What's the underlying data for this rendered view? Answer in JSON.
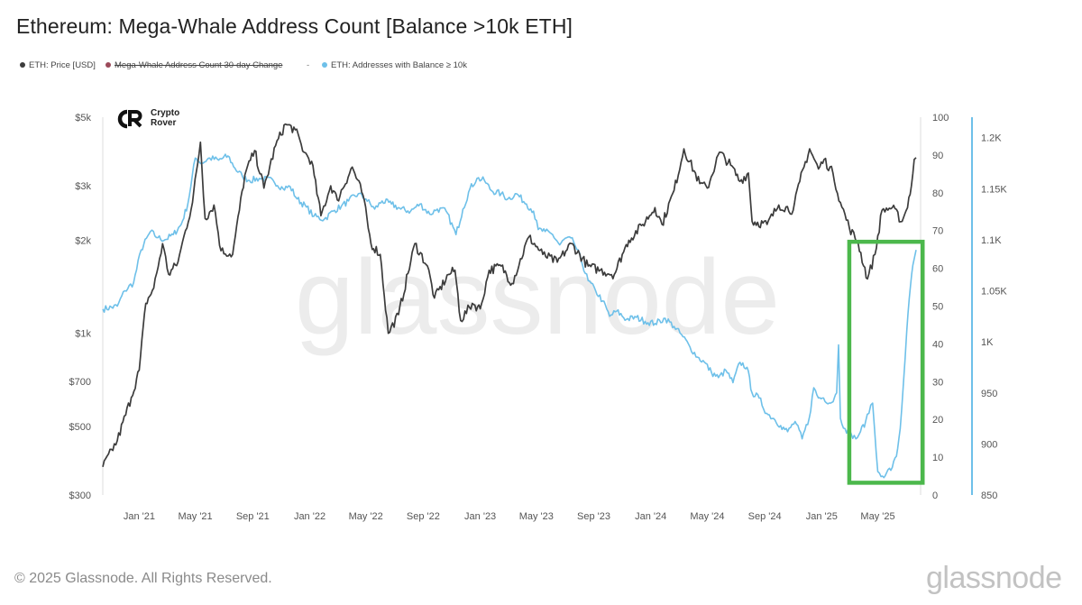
{
  "header": {
    "title": "Ethereum: Mega-Whale Address Count [Balance >10k ETH]"
  },
  "legend": {
    "items": [
      {
        "label": "ETH: Price [USD]",
        "color": "#3c3c3c",
        "struck": false
      },
      {
        "label": "Mega-Whale Address Count 30-day Change",
        "color": "#9b4a5a",
        "struck": true
      },
      {
        "label": "ETH: Addresses with Balance ≥ 10k",
        "color": "#6ec0e9",
        "struck": false
      }
    ],
    "separator": "-"
  },
  "logo": {
    "line1": "Crypto",
    "line2": "Rover"
  },
  "watermark": {
    "text": "glassnode"
  },
  "footer": {
    "copyright": "© 2025 Glassnode. All Rights Reserved.",
    "brand": "glassnode"
  },
  "colors": {
    "price": "#3c3c3c",
    "addresses": "#6ec0e9",
    "highlight": "#4cb84c",
    "grid": "#ebebeb"
  },
  "chart_data": {
    "type": "line",
    "title": "Ethereum: Mega-Whale Address Count [Balance >10k ETH]",
    "x_ticks": [
      "Jan '21",
      "May '21",
      "Sep '21",
      "Jan '22",
      "May '22",
      "Sep '22",
      "Jan '23",
      "May '23",
      "Sep '23",
      "Jan '24",
      "May '24",
      "Sep '24",
      "Jan '25",
      "May '25"
    ],
    "x_range": [
      "2020-10-15",
      "2025-07-22"
    ],
    "left_axis": {
      "scale": "log",
      "ticks": [
        "$300",
        "$500",
        "$700",
        "$1k",
        "$2k",
        "$3k",
        "$5k"
      ],
      "range": [
        300,
        5000
      ]
    },
    "mid_axis": {
      "ticks": [
        "0",
        "10",
        "20",
        "30",
        "40",
        "50",
        "60",
        "70",
        "80",
        "90",
        "100"
      ],
      "range": [
        0,
        100
      ]
    },
    "right_axis": {
      "ticks": [
        "850",
        "900",
        "950",
        "1K",
        "1.05K",
        "1.1K",
        "1.15K",
        "1.2K"
      ],
      "range": [
        850,
        1220
      ]
    },
    "grid": false,
    "highlight_box": {
      "x_range": [
        "2025-03-01",
        "2025-08-05"
      ],
      "addresses_range": [
        862,
        1098
      ],
      "color": "#4cb84c"
    },
    "series": [
      {
        "name": "ETH: Price [USD]",
        "axis": "left",
        "points": [
          [
            "2020-10-15",
            370
          ],
          [
            "2020-11-15",
            450
          ],
          [
            "2020-12-15",
            620
          ],
          [
            "2021-01-01",
            760
          ],
          [
            "2021-01-15",
            1250
          ],
          [
            "2021-02-01",
            1400
          ],
          [
            "2021-02-20",
            1950
          ],
          [
            "2021-03-05",
            1550
          ],
          [
            "2021-03-25",
            1700
          ],
          [
            "2021-04-10",
            2150
          ],
          [
            "2021-04-25",
            2650
          ],
          [
            "2021-05-12",
            4150
          ],
          [
            "2021-05-22",
            2350
          ],
          [
            "2021-06-10",
            2600
          ],
          [
            "2021-06-25",
            1850
          ],
          [
            "2021-07-20",
            1800
          ],
          [
            "2021-08-15",
            3250
          ],
          [
            "2021-09-05",
            3900
          ],
          [
            "2021-09-25",
            2950
          ],
          [
            "2021-10-20",
            4050
          ],
          [
            "2021-11-10",
            4750
          ],
          [
            "2021-12-01",
            4550
          ],
          [
            "2021-12-20",
            3850
          ],
          [
            "2022-01-05",
            3600
          ],
          [
            "2022-01-25",
            2400
          ],
          [
            "2022-02-15",
            3000
          ],
          [
            "2022-03-01",
            2700
          ],
          [
            "2022-04-02",
            3450
          ],
          [
            "2022-04-25",
            2800
          ],
          [
            "2022-05-12",
            1950
          ],
          [
            "2022-06-01",
            1800
          ],
          [
            "2022-06-18",
            1000
          ],
          [
            "2022-07-10",
            1150
          ],
          [
            "2022-08-14",
            1950
          ],
          [
            "2022-09-10",
            1650
          ],
          [
            "2022-09-25",
            1300
          ],
          [
            "2022-10-25",
            1550
          ],
          [
            "2022-11-08",
            1600
          ],
          [
            "2022-11-20",
            1100
          ],
          [
            "2022-12-15",
            1250
          ],
          [
            "2023-01-01",
            1200
          ],
          [
            "2023-01-20",
            1600
          ],
          [
            "2023-02-15",
            1650
          ],
          [
            "2023-03-10",
            1450
          ],
          [
            "2023-04-15",
            2050
          ],
          [
            "2023-05-15",
            1800
          ],
          [
            "2023-06-15",
            1700
          ],
          [
            "2023-07-15",
            1950
          ],
          [
            "2023-08-20",
            1650
          ],
          [
            "2023-09-15",
            1600
          ],
          [
            "2023-10-15",
            1550
          ],
          [
            "2023-11-01",
            1800
          ],
          [
            "2023-11-15",
            2000
          ],
          [
            "2023-12-15",
            2250
          ],
          [
            "2024-01-10",
            2550
          ],
          [
            "2024-01-25",
            2250
          ],
          [
            "2024-02-20",
            2900
          ],
          [
            "2024-03-12",
            3950
          ],
          [
            "2024-04-15",
            3050
          ],
          [
            "2024-05-01",
            2950
          ],
          [
            "2024-05-27",
            3850
          ],
          [
            "2024-06-20",
            3500
          ],
          [
            "2024-07-10",
            3100
          ],
          [
            "2024-07-28",
            3300
          ],
          [
            "2024-08-05",
            2300
          ],
          [
            "2024-09-06",
            2250
          ],
          [
            "2024-10-01",
            2600
          ],
          [
            "2024-11-01",
            2500
          ],
          [
            "2024-11-15",
            3100
          ],
          [
            "2024-12-06",
            3950
          ],
          [
            "2024-12-25",
            3400
          ],
          [
            "2025-01-06",
            3650
          ],
          [
            "2025-01-25",
            3300
          ],
          [
            "2025-02-10",
            2650
          ],
          [
            "2025-03-01",
            2200
          ],
          [
            "2025-03-20",
            1950
          ],
          [
            "2025-04-09",
            1500
          ],
          [
            "2025-04-25",
            1800
          ],
          [
            "2025-05-10",
            2500
          ],
          [
            "2025-06-01",
            2550
          ],
          [
            "2025-06-22",
            2300
          ],
          [
            "2025-07-01",
            2500
          ],
          [
            "2025-07-12",
            3000
          ],
          [
            "2025-07-18",
            3650
          ],
          [
            "2025-07-22",
            3700
          ]
        ]
      },
      {
        "name": "ETH: Addresses with Balance ≥ 10k",
        "axis": "right",
        "points": [
          [
            "2020-10-15",
            1032
          ],
          [
            "2020-11-15",
            1035
          ],
          [
            "2020-12-01",
            1050
          ],
          [
            "2020-12-20",
            1058
          ],
          [
            "2021-01-05",
            1090
          ],
          [
            "2021-01-25",
            1108
          ],
          [
            "2021-02-10",
            1102
          ],
          [
            "2021-02-25",
            1100
          ],
          [
            "2021-03-15",
            1105
          ],
          [
            "2021-04-01",
            1115
          ],
          [
            "2021-04-15",
            1135
          ],
          [
            "2021-05-01",
            1180
          ],
          [
            "2021-05-15",
            1175
          ],
          [
            "2021-06-01",
            1180
          ],
          [
            "2021-06-20",
            1178
          ],
          [
            "2021-07-10",
            1182
          ],
          [
            "2021-07-25",
            1170
          ],
          [
            "2021-08-10",
            1162
          ],
          [
            "2021-08-25",
            1158
          ],
          [
            "2021-09-15",
            1160
          ],
          [
            "2021-10-15",
            1158
          ],
          [
            "2021-11-05",
            1150
          ],
          [
            "2021-11-20",
            1152
          ],
          [
            "2021-12-05",
            1140
          ],
          [
            "2021-12-25",
            1132
          ],
          [
            "2022-01-10",
            1123
          ],
          [
            "2022-02-01",
            1120
          ],
          [
            "2022-02-20",
            1128
          ],
          [
            "2022-03-10",
            1133
          ],
          [
            "2022-03-25",
            1138
          ],
          [
            "2022-04-15",
            1145
          ],
          [
            "2022-05-01",
            1140
          ],
          [
            "2022-05-20",
            1130
          ],
          [
            "2022-06-05",
            1138
          ],
          [
            "2022-06-25",
            1135
          ],
          [
            "2022-07-15",
            1130
          ],
          [
            "2022-08-05",
            1128
          ],
          [
            "2022-08-25",
            1135
          ],
          [
            "2022-09-15",
            1125
          ],
          [
            "2022-10-01",
            1130
          ],
          [
            "2022-10-20",
            1128
          ],
          [
            "2022-11-10",
            1105
          ],
          [
            "2022-11-25",
            1130
          ],
          [
            "2022-12-10",
            1150
          ],
          [
            "2022-12-25",
            1160
          ],
          [
            "2023-01-10",
            1158
          ],
          [
            "2023-01-25",
            1148
          ],
          [
            "2023-02-15",
            1145
          ],
          [
            "2023-03-01",
            1140
          ],
          [
            "2023-03-20",
            1145
          ],
          [
            "2023-04-10",
            1135
          ],
          [
            "2023-04-25",
            1128
          ],
          [
            "2023-05-05",
            1110
          ],
          [
            "2023-05-20",
            1108
          ],
          [
            "2023-06-05",
            1105
          ],
          [
            "2023-06-20",
            1095
          ],
          [
            "2023-07-05",
            1102
          ],
          [
            "2023-07-20",
            1098
          ],
          [
            "2023-08-05",
            1080
          ],
          [
            "2023-08-20",
            1060
          ],
          [
            "2023-09-05",
            1050
          ],
          [
            "2023-09-20",
            1040
          ],
          [
            "2023-10-05",
            1025
          ],
          [
            "2023-10-20",
            1030
          ],
          [
            "2023-11-10",
            1022
          ],
          [
            "2023-12-01",
            1024
          ],
          [
            "2023-12-20",
            1020
          ],
          [
            "2024-01-10",
            1018
          ],
          [
            "2024-02-01",
            1023
          ],
          [
            "2024-02-20",
            1015
          ],
          [
            "2024-03-10",
            1005
          ],
          [
            "2024-03-25",
            995
          ],
          [
            "2024-04-10",
            985
          ],
          [
            "2024-04-25",
            980
          ],
          [
            "2024-05-10",
            970
          ],
          [
            "2024-05-25",
            965
          ],
          [
            "2024-06-10",
            972
          ],
          [
            "2024-06-25",
            960
          ],
          [
            "2024-07-10",
            980
          ],
          [
            "2024-07-25",
            975
          ],
          [
            "2024-08-05",
            950
          ],
          [
            "2024-08-20",
            945
          ],
          [
            "2024-09-05",
            930
          ],
          [
            "2024-09-20",
            925
          ],
          [
            "2024-10-05",
            918
          ],
          [
            "2024-10-20",
            912
          ],
          [
            "2024-11-05",
            922
          ],
          [
            "2024-11-20",
            905
          ],
          [
            "2024-12-05",
            925
          ],
          [
            "2024-12-15",
            955
          ],
          [
            "2024-12-25",
            945
          ],
          [
            "2025-01-05",
            945
          ],
          [
            "2025-01-20",
            940
          ],
          [
            "2025-01-28",
            945
          ],
          [
            "2025-02-02",
            950
          ],
          [
            "2025-02-06",
            997
          ],
          [
            "2025-02-10",
            925
          ],
          [
            "2025-02-20",
            915
          ],
          [
            "2025-03-05",
            910
          ],
          [
            "2025-03-15",
            905
          ],
          [
            "2025-03-25",
            912
          ],
          [
            "2025-04-05",
            922
          ],
          [
            "2025-04-12",
            930
          ],
          [
            "2025-04-16",
            938
          ],
          [
            "2025-04-20",
            940
          ],
          [
            "2025-04-24",
            915
          ],
          [
            "2025-05-01",
            873
          ],
          [
            "2025-05-08",
            868
          ],
          [
            "2025-05-20",
            872
          ],
          [
            "2025-06-01",
            877
          ],
          [
            "2025-06-10",
            888
          ],
          [
            "2025-06-18",
            915
          ],
          [
            "2025-06-25",
            960
          ],
          [
            "2025-07-02",
            1010
          ],
          [
            "2025-07-10",
            1055
          ],
          [
            "2025-07-15",
            1075
          ],
          [
            "2025-07-22",
            1090
          ]
        ]
      }
    ]
  }
}
